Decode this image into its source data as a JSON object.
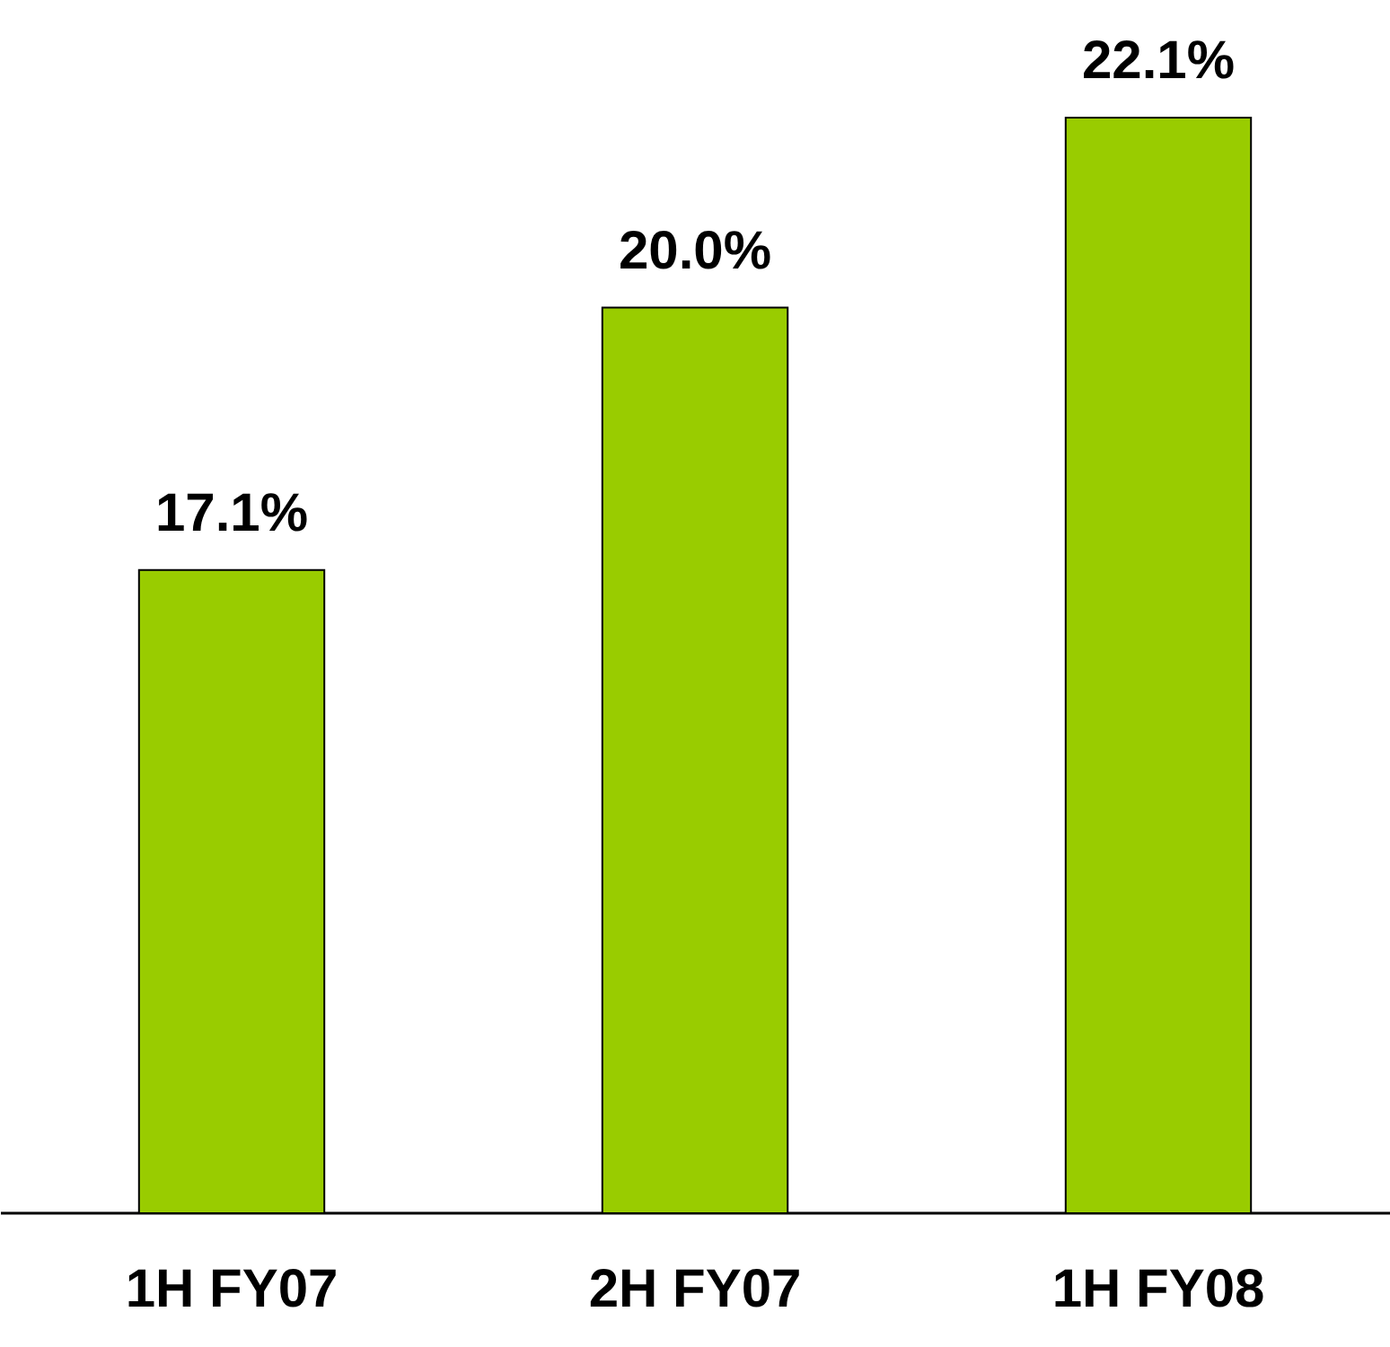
{
  "chart_data": {
    "type": "bar",
    "categories": [
      "1H FY07",
      "2H FY07",
      "1H FY08"
    ],
    "values": [
      17.1,
      20.0,
      22.1
    ],
    "value_labels": [
      "17.1%",
      "20.0%",
      "22.1%"
    ],
    "color": "#99cc00",
    "ylim": [
      10,
      23.4
    ],
    "tick_labels": "x"
  }
}
